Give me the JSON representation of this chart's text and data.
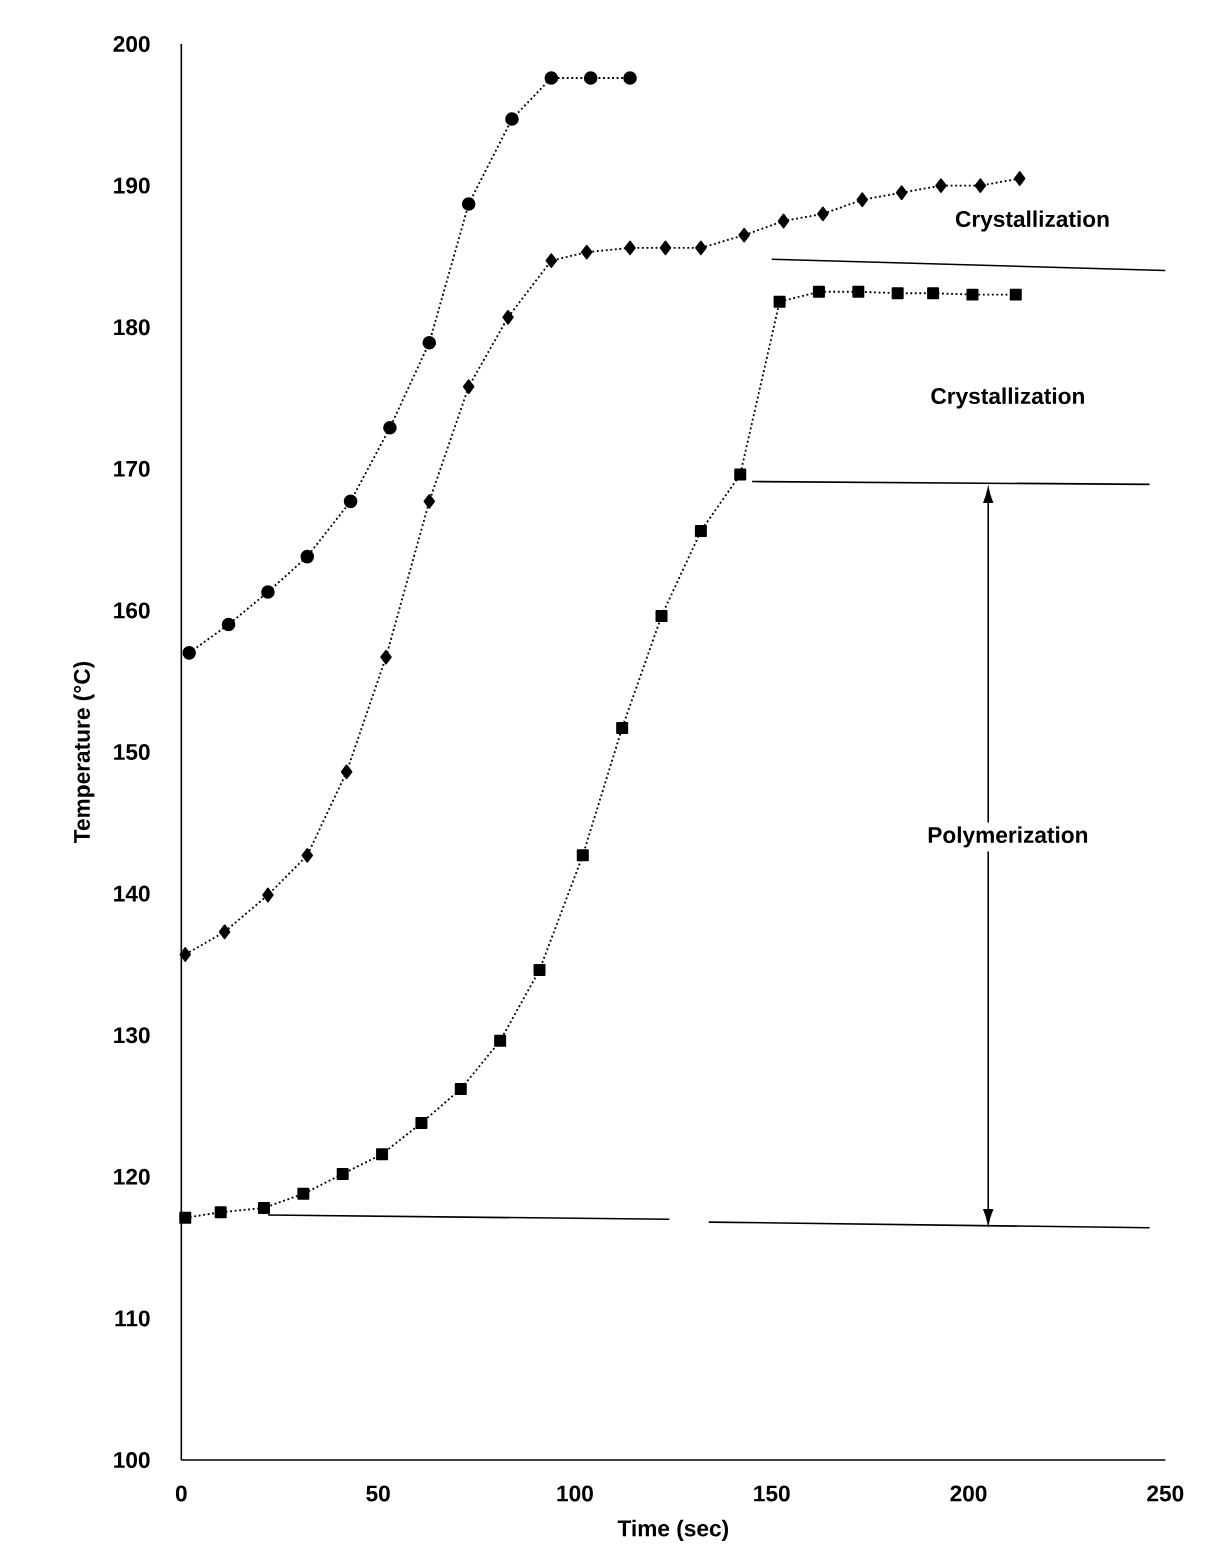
{
  "chart_data": {
    "type": "line",
    "xlabel": "Time (sec)",
    "ylabel": "Temperature (°C)",
    "xlim": [
      0,
      250
    ],
    "ylim": [
      100,
      200
    ],
    "xticks": [
      0,
      50,
      100,
      150,
      200,
      250
    ],
    "yticks": [
      100,
      110,
      120,
      130,
      140,
      150,
      160,
      170,
      180,
      190,
      200
    ],
    "series": [
      {
        "color": "#000000",
        "marker": "circle",
        "line_style": "dotted",
        "x": [
          2,
          12,
          22,
          32,
          43,
          53,
          63,
          73,
          84,
          94,
          104,
          114
        ],
        "values": [
          157,
          159,
          161.3,
          163.8,
          167.7,
          172.9,
          178.9,
          188.7,
          194.7,
          197.6,
          197.6,
          197.6
        ]
      },
      {
        "color": "#000000",
        "marker": "diamond",
        "line_style": "dotted",
        "x": [
          1,
          11,
          22,
          32,
          42,
          52,
          63,
          73,
          83,
          94,
          103,
          114,
          123,
          132,
          143,
          153,
          163,
          173,
          183,
          193,
          203,
          213
        ],
        "values": [
          135.7,
          137.3,
          139.9,
          142.7,
          148.6,
          156.7,
          167.7,
          175.8,
          180.7,
          184.7,
          185.3,
          185.6,
          185.6,
          185.6,
          186.5,
          187.5,
          188,
          189,
          189.5,
          190,
          190,
          190.5
        ]
      },
      {
        "color": "#000000",
        "marker": "square",
        "line_style": "dotted",
        "x": [
          1,
          10,
          21,
          31,
          41,
          51,
          61,
          71,
          81,
          91,
          102,
          112,
          122,
          132,
          142,
          152,
          162,
          172,
          182,
          191,
          201,
          212
        ],
        "values": [
          117.1,
          117.5,
          117.8,
          118.8,
          120.2,
          121.6,
          123.8,
          126.2,
          129.6,
          134.6,
          142.7,
          151.7,
          159.6,
          165.6,
          169.6,
          181.8,
          182.5,
          182.5,
          182.4,
          182.4,
          182.3,
          182.3
        ]
      },
      {
        "color": "#000000",
        "marker": "none",
        "line_style": "solid",
        "x": [
          150,
          250
        ],
        "values": [
          184.8,
          184
        ]
      },
      {
        "color": "#000000",
        "marker": "none",
        "line_style": "solid",
        "x": [
          145,
          246
        ],
        "values": [
          169.1,
          168.9
        ]
      },
      {
        "color": "#000000",
        "marker": "none",
        "line_style": "solid",
        "x": [
          22,
          124,
          129,
          134,
          246
        ],
        "values": [
          117.3,
          117,
          null,
          116.8,
          116.4
        ]
      }
    ],
    "annotations": [
      "Crystallization",
      "Crystallization",
      "Polymerization"
    ]
  }
}
